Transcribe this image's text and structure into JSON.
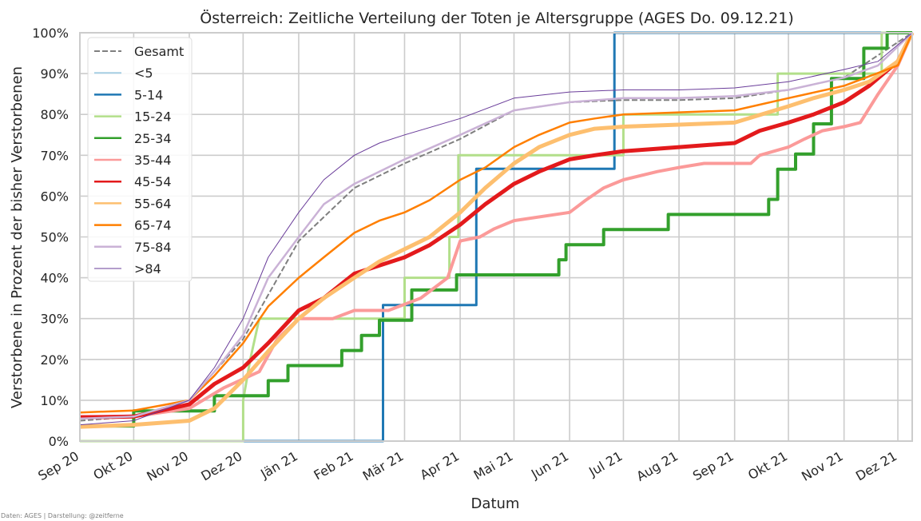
{
  "chart_data": {
    "type": "line",
    "title": "Österreich: Zeitliche Verteilung der Toten je Altersgruppe (AGES Do. 09.12.21)",
    "xlabel": "Datum",
    "ylabel": "Verstorbene in Prozent der bisher Verstorbenen",
    "x_tick_labels": [
      "Sep 20",
      "Okt 20",
      "Nov 20",
      "Dez 20",
      "Jän 21",
      "Feb 21",
      "Mär 21",
      "Apr 21",
      "Mai 21",
      "Jun 21",
      "Jul 21",
      "Aug 21",
      "Sep 21",
      "Okt 21",
      "Nov 21",
      "Dez 21"
    ],
    "x_tick_dates": [
      "2020-09-01",
      "2020-10-01",
      "2020-11-01",
      "2020-12-01",
      "2021-01-01",
      "2021-02-01",
      "2021-03-01",
      "2021-04-01",
      "2021-05-01",
      "2021-06-01",
      "2021-07-01",
      "2021-08-01",
      "2021-09-01",
      "2021-10-01",
      "2021-11-01",
      "2021-12-01"
    ],
    "xlim": [
      "2020-09-01",
      "2021-12-09"
    ],
    "y_tick_labels": [
      "0%",
      "10%",
      "20%",
      "30%",
      "40%",
      "50%",
      "60%",
      "70%",
      "80%",
      "90%",
      "100%"
    ],
    "ylim": [
      0,
      100
    ],
    "grid": true,
    "legend_position": "top-left",
    "credit": "Daten: AGES | Darstellung: @zeitferne",
    "series": [
      {
        "name": "Gesamt",
        "color": "#7f7f7f",
        "style": "dashed",
        "width": 2,
        "points": [
          [
            "2020-09-01",
            5
          ],
          [
            "2020-10-01",
            6
          ],
          [
            "2020-11-01",
            10
          ],
          [
            "2020-12-01",
            25
          ],
          [
            "2021-01-01",
            49
          ],
          [
            "2021-02-01",
            62
          ],
          [
            "2021-03-01",
            68
          ],
          [
            "2021-04-01",
            74
          ],
          [
            "2021-05-01",
            81
          ],
          [
            "2021-06-01",
            83
          ],
          [
            "2021-07-01",
            83.5
          ],
          [
            "2021-08-01",
            83.5
          ],
          [
            "2021-09-01",
            84
          ],
          [
            "2021-10-01",
            86
          ],
          [
            "2021-11-01",
            89
          ],
          [
            "2021-12-09",
            100
          ]
        ]
      },
      {
        "name": "<5",
        "color": "#a6cee3",
        "style": "solid",
        "width": 2,
        "points": [
          [
            "2020-09-01",
            100
          ],
          [
            "2021-12-09",
            100
          ]
        ]
      },
      {
        "name": "5-14",
        "color": "#1f78b4",
        "style": "solid",
        "width": 3,
        "points": [
          [
            "2020-09-01",
            0
          ],
          [
            "2021-02-17",
            0
          ],
          [
            "2021-02-17",
            33.3
          ],
          [
            "2021-04-10",
            33.3
          ],
          [
            "2021-04-10",
            66.7
          ],
          [
            "2021-06-26",
            66.7
          ],
          [
            "2021-06-26",
            100
          ],
          [
            "2021-12-09",
            100
          ]
        ]
      },
      {
        "name": "15-24",
        "color": "#b2df8a",
        "style": "solid",
        "width": 3,
        "points": [
          [
            "2020-09-01",
            0
          ],
          [
            "2020-12-01",
            0
          ],
          [
            "2020-12-01",
            10
          ],
          [
            "2020-12-05",
            20
          ],
          [
            "2020-12-10",
            30
          ],
          [
            "2021-03-01",
            30
          ],
          [
            "2021-03-01",
            40
          ],
          [
            "2021-03-26",
            40
          ],
          [
            "2021-03-26",
            50
          ],
          [
            "2021-03-31",
            50
          ],
          [
            "2021-03-31",
            70
          ],
          [
            "2021-07-01",
            70
          ],
          [
            "2021-07-01",
            80
          ],
          [
            "2021-09-25",
            80
          ],
          [
            "2021-09-25",
            90
          ],
          [
            "2021-11-22",
            90
          ],
          [
            "2021-11-22",
            100
          ],
          [
            "2021-12-09",
            100
          ]
        ]
      },
      {
        "name": "25-34",
        "color": "#33a02c",
        "style": "solid",
        "width": 4,
        "points": [
          [
            "2020-09-01",
            3.7
          ],
          [
            "2020-10-01",
            3.7
          ],
          [
            "2020-10-01",
            7.4
          ],
          [
            "2020-11-15",
            7.4
          ],
          [
            "2020-11-15",
            11.1
          ],
          [
            "2020-12-15",
            11.1
          ],
          [
            "2020-12-15",
            14.8
          ],
          [
            "2020-12-26",
            14.8
          ],
          [
            "2020-12-26",
            18.5
          ],
          [
            "2021-01-25",
            18.5
          ],
          [
            "2021-01-25",
            22.2
          ],
          [
            "2021-02-05",
            22.2
          ],
          [
            "2021-02-05",
            25.9
          ],
          [
            "2021-02-15",
            25.9
          ],
          [
            "2021-02-15",
            29.6
          ],
          [
            "2021-03-05",
            29.6
          ],
          [
            "2021-03-05",
            37
          ],
          [
            "2021-03-30",
            37
          ],
          [
            "2021-03-30",
            40.7
          ],
          [
            "2021-05-26",
            40.7
          ],
          [
            "2021-05-26",
            44.4
          ],
          [
            "2021-05-30",
            44.4
          ],
          [
            "2021-05-30",
            48.1
          ],
          [
            "2021-06-20",
            48.1
          ],
          [
            "2021-06-20",
            51.8
          ],
          [
            "2021-07-26",
            51.8
          ],
          [
            "2021-07-26",
            55.5
          ],
          [
            "2021-09-20",
            55.5
          ],
          [
            "2021-09-20",
            59.2
          ],
          [
            "2021-09-25",
            59.2
          ],
          [
            "2021-09-25",
            66.6
          ],
          [
            "2021-10-05",
            66.6
          ],
          [
            "2021-10-05",
            70.3
          ],
          [
            "2021-10-15",
            70.3
          ],
          [
            "2021-10-15",
            77.7
          ],
          [
            "2021-10-25",
            77.7
          ],
          [
            "2021-10-25",
            88.8
          ],
          [
            "2021-11-12",
            88.8
          ],
          [
            "2021-11-12",
            96.2
          ],
          [
            "2021-11-25",
            96.2
          ],
          [
            "2021-11-25",
            100
          ],
          [
            "2021-12-09",
            100
          ]
        ]
      },
      {
        "name": "35-44",
        "color": "#fb9a99",
        "style": "solid",
        "width": 4,
        "points": [
          [
            "2020-09-01",
            6
          ],
          [
            "2020-10-01",
            6
          ],
          [
            "2020-11-01",
            8
          ],
          [
            "2020-11-20",
            13
          ],
          [
            "2020-12-10",
            17
          ],
          [
            "2020-12-20",
            25
          ],
          [
            "2021-01-01",
            30
          ],
          [
            "2021-01-20",
            30
          ],
          [
            "2021-02-01",
            32
          ],
          [
            "2021-02-20",
            32
          ],
          [
            "2021-03-10",
            35
          ],
          [
            "2021-03-25",
            40
          ],
          [
            "2021-04-01",
            49
          ],
          [
            "2021-04-12",
            50
          ],
          [
            "2021-04-20",
            52
          ],
          [
            "2021-05-01",
            54
          ],
          [
            "2021-06-01",
            56
          ],
          [
            "2021-06-10",
            59
          ],
          [
            "2021-06-20",
            62
          ],
          [
            "2021-07-01",
            64
          ],
          [
            "2021-07-20",
            66
          ],
          [
            "2021-08-01",
            67
          ],
          [
            "2021-08-15",
            68
          ],
          [
            "2021-09-10",
            68
          ],
          [
            "2021-09-15",
            70
          ],
          [
            "2021-10-01",
            72
          ],
          [
            "2021-10-10",
            74
          ],
          [
            "2021-10-20",
            76
          ],
          [
            "2021-11-01",
            77
          ],
          [
            "2021-11-10",
            78
          ],
          [
            "2021-11-20",
            85
          ],
          [
            "2021-12-01",
            92
          ],
          [
            "2021-12-09",
            100
          ]
        ]
      },
      {
        "name": "45-54",
        "color": "#e31a1c",
        "style": "solid",
        "width": 5,
        "points": [
          [
            "2020-09-01",
            5.8
          ],
          [
            "2020-10-01",
            6
          ],
          [
            "2020-11-01",
            9
          ],
          [
            "2020-11-15",
            14
          ],
          [
            "2020-12-01",
            18
          ],
          [
            "2020-12-15",
            24
          ],
          [
            "2021-01-01",
            32
          ],
          [
            "2021-01-15",
            35
          ],
          [
            "2021-02-01",
            41
          ],
          [
            "2021-02-15",
            43
          ],
          [
            "2021-03-01",
            45
          ],
          [
            "2021-03-15",
            48
          ],
          [
            "2021-04-01",
            53
          ],
          [
            "2021-04-15",
            58
          ],
          [
            "2021-05-01",
            63
          ],
          [
            "2021-05-15",
            66
          ],
          [
            "2021-06-01",
            69
          ],
          [
            "2021-06-15",
            70
          ],
          [
            "2021-07-01",
            71
          ],
          [
            "2021-08-01",
            72
          ],
          [
            "2021-09-01",
            73
          ],
          [
            "2021-09-15",
            76
          ],
          [
            "2021-10-01",
            78
          ],
          [
            "2021-10-15",
            80
          ],
          [
            "2021-11-01",
            83
          ],
          [
            "2021-11-15",
            87
          ],
          [
            "2021-12-01",
            93
          ],
          [
            "2021-12-09",
            100
          ]
        ]
      },
      {
        "name": "55-64",
        "color": "#fdbf6f",
        "style": "solid",
        "width": 5,
        "points": [
          [
            "2020-09-01",
            3.5
          ],
          [
            "2020-10-01",
            4
          ],
          [
            "2020-11-01",
            5
          ],
          [
            "2020-11-15",
            8
          ],
          [
            "2020-12-01",
            15
          ],
          [
            "2020-12-15",
            22
          ],
          [
            "2021-01-01",
            30
          ],
          [
            "2021-01-15",
            35
          ],
          [
            "2021-02-01",
            40
          ],
          [
            "2021-02-15",
            44
          ],
          [
            "2021-03-01",
            47
          ],
          [
            "2021-03-15",
            50
          ],
          [
            "2021-04-01",
            56
          ],
          [
            "2021-04-15",
            62
          ],
          [
            "2021-05-01",
            68
          ],
          [
            "2021-05-15",
            72
          ],
          [
            "2021-06-01",
            75
          ],
          [
            "2021-06-15",
            76.5
          ],
          [
            "2021-07-01",
            77
          ],
          [
            "2021-08-01",
            77.5
          ],
          [
            "2021-09-01",
            78
          ],
          [
            "2021-10-01",
            82
          ],
          [
            "2021-10-15",
            84
          ],
          [
            "2021-11-01",
            86
          ],
          [
            "2021-11-15",
            88
          ],
          [
            "2021-12-01",
            93
          ],
          [
            "2021-12-09",
            100
          ]
        ]
      },
      {
        "name": "65-74",
        "color": "#ff7f00",
        "style": "solid",
        "width": 2.5,
        "points": [
          [
            "2020-09-01",
            7
          ],
          [
            "2020-10-01",
            7.5
          ],
          [
            "2020-11-01",
            10
          ],
          [
            "2020-11-15",
            16
          ],
          [
            "2020-12-01",
            24
          ],
          [
            "2020-12-15",
            33
          ],
          [
            "2021-01-01",
            40
          ],
          [
            "2021-01-15",
            45
          ],
          [
            "2021-02-01",
            51
          ],
          [
            "2021-02-15",
            54
          ],
          [
            "2021-03-01",
            56
          ],
          [
            "2021-03-15",
            59
          ],
          [
            "2021-04-01",
            64
          ],
          [
            "2021-04-15",
            67
          ],
          [
            "2021-05-01",
            72
          ],
          [
            "2021-05-15",
            75
          ],
          [
            "2021-06-01",
            78
          ],
          [
            "2021-06-15",
            79
          ],
          [
            "2021-07-01",
            80
          ],
          [
            "2021-08-01",
            80.5
          ],
          [
            "2021-09-01",
            81
          ],
          [
            "2021-10-01",
            84
          ],
          [
            "2021-11-01",
            87
          ],
          [
            "2021-12-01",
            92
          ],
          [
            "2021-12-09",
            100
          ]
        ]
      },
      {
        "name": "75-84",
        "color": "#cab2d6",
        "style": "solid",
        "width": 2.5,
        "points": [
          [
            "2020-09-01",
            5.5
          ],
          [
            "2020-10-01",
            6
          ],
          [
            "2020-11-01",
            10
          ],
          [
            "2020-11-15",
            17
          ],
          [
            "2020-12-01",
            26
          ],
          [
            "2020-12-15",
            40
          ],
          [
            "2021-01-01",
            50
          ],
          [
            "2021-01-15",
            58
          ],
          [
            "2021-02-01",
            63
          ],
          [
            "2021-02-15",
            66
          ],
          [
            "2021-03-01",
            69
          ],
          [
            "2021-04-01",
            75
          ],
          [
            "2021-05-01",
            81
          ],
          [
            "2021-06-01",
            83
          ],
          [
            "2021-07-01",
            84
          ],
          [
            "2021-08-01",
            84
          ],
          [
            "2021-09-01",
            84.5
          ],
          [
            "2021-10-01",
            86
          ],
          [
            "2021-11-01",
            89
          ],
          [
            "2021-11-20",
            92
          ],
          [
            "2021-12-09",
            100
          ]
        ]
      },
      {
        "name": ">84",
        "color": "#6a3d9a",
        "style": "solid",
        "width": 1,
        "points": [
          [
            "2020-09-01",
            4
          ],
          [
            "2020-10-01",
            5
          ],
          [
            "2020-11-01",
            10
          ],
          [
            "2020-11-15",
            18
          ],
          [
            "2020-12-01",
            30
          ],
          [
            "2020-12-15",
            45
          ],
          [
            "2021-01-01",
            56
          ],
          [
            "2021-01-15",
            64
          ],
          [
            "2021-02-01",
            70
          ],
          [
            "2021-02-15",
            73
          ],
          [
            "2021-03-01",
            75
          ],
          [
            "2021-04-01",
            79
          ],
          [
            "2021-05-01",
            84
          ],
          [
            "2021-06-01",
            85.5
          ],
          [
            "2021-07-01",
            86
          ],
          [
            "2021-08-01",
            86
          ],
          [
            "2021-09-01",
            86.5
          ],
          [
            "2021-10-01",
            88
          ],
          [
            "2021-11-01",
            91
          ],
          [
            "2021-11-20",
            93
          ],
          [
            "2021-12-09",
            100
          ]
        ]
      }
    ]
  }
}
